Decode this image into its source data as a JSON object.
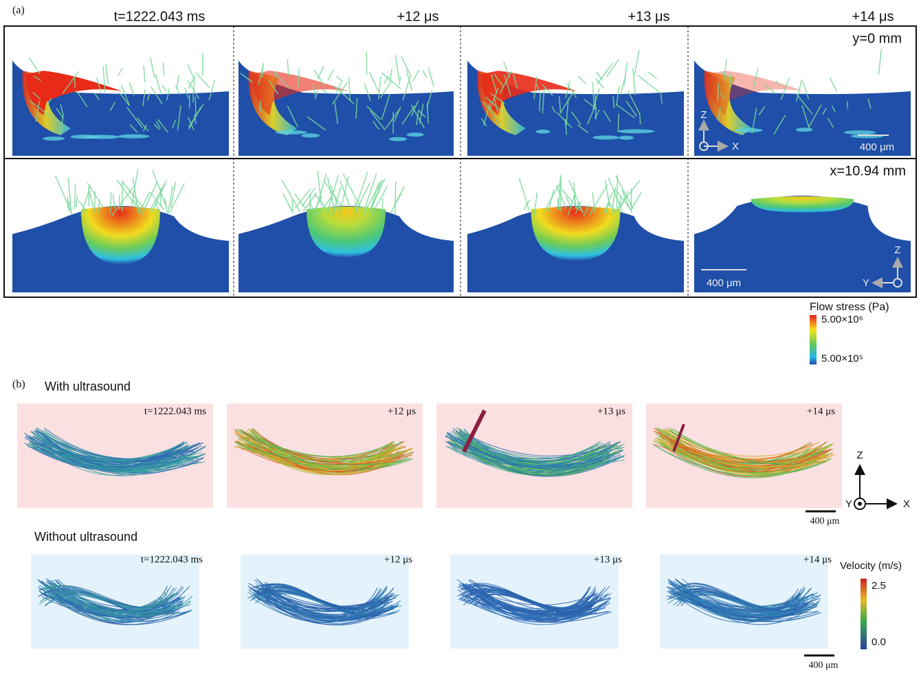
{
  "panel_a": {
    "label": "(a)",
    "times": [
      "t=1222.043 ms",
      "+12 μs",
      "+13 μs",
      "+14 μs"
    ],
    "row_labels": [
      "y=0 mm",
      "x=10.94 mm"
    ],
    "scale_bar": "400 μm",
    "axes_top": {
      "z": "Z",
      "x": "X"
    },
    "axes_bottom": {
      "z": "Z",
      "y": "Y"
    },
    "colorbar": {
      "title": "Flow stress (Pa)",
      "max": "5.00×10⁶",
      "min": "5.00×10⁵"
    }
  },
  "panel_b": {
    "label": "(b)",
    "rows": [
      {
        "title": "With ultrasound",
        "times": [
          "t=1222.043 ms",
          "+12 μs",
          "+13 μs",
          "+14 μs"
        ]
      },
      {
        "title": "Without ultrasound",
        "times": [
          "t=1222.043 ms",
          "+12 μs",
          "+13 μs",
          "+14 μs"
        ]
      }
    ],
    "axes": {
      "z": "Z",
      "y": "Y",
      "x": "X"
    },
    "scale_bar": "400 μm",
    "colorbar": {
      "title": "Velocity (m/s)",
      "max": "2.5",
      "min": "0.0"
    }
  }
}
